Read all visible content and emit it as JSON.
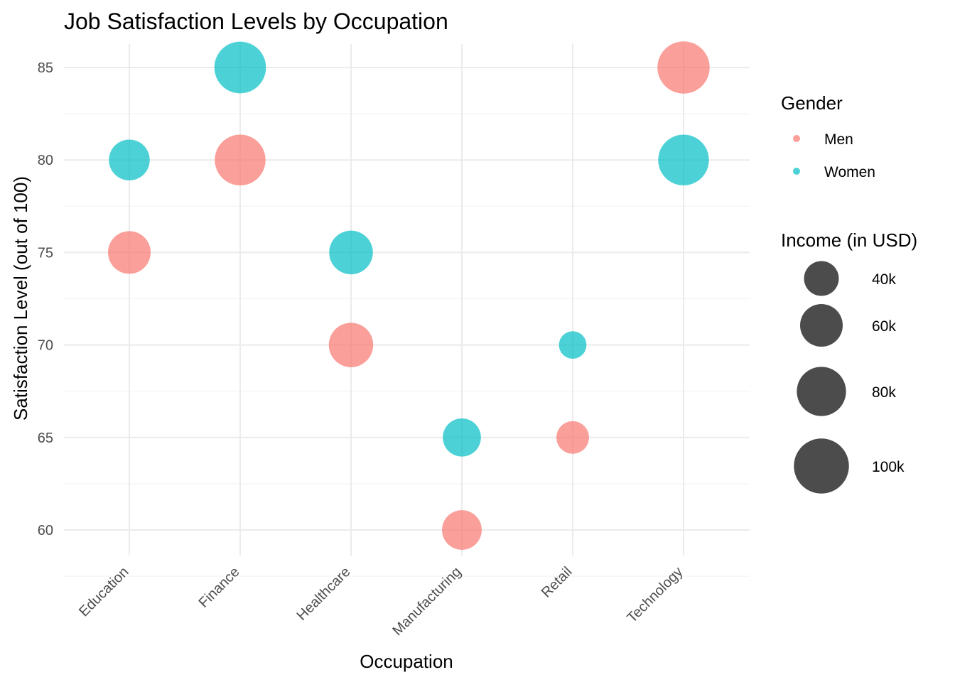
{
  "chart_data": {
    "type": "scatter",
    "title": "Job Satisfaction Levels by Occupation",
    "xlabel": "Occupation",
    "ylabel": "Satisfaction Level (out of 100)",
    "categories": [
      "Education",
      "Finance",
      "Healthcare",
      "Manufacturing",
      "Retail",
      "Technology"
    ],
    "y_ticks": [
      60,
      65,
      70,
      75,
      80,
      85
    ],
    "ylim": [
      58.6,
      86.2
    ],
    "grid": true,
    "legend_position": "right",
    "color_legend": {
      "title": "Gender",
      "entries": [
        {
          "label": "Men",
          "color": "#F8766D"
        },
        {
          "label": "Women",
          "color": "#00BFC4"
        }
      ]
    },
    "size_legend": {
      "title": "Income (in USD)",
      "entries": [
        {
          "label": "40k",
          "value": 40000
        },
        {
          "label": "60k",
          "value": 60000
        },
        {
          "label": "80k",
          "value": 80000
        },
        {
          "label": "100k",
          "value": 100000
        }
      ]
    },
    "series": [
      {
        "name": "Men",
        "color": "#F8766D",
        "points": [
          {
            "x": "Education",
            "y": 75,
            "income": 60000
          },
          {
            "x": "Finance",
            "y": 80,
            "income": 85000
          },
          {
            "x": "Healthcare",
            "y": 70,
            "income": 65000
          },
          {
            "x": "Manufacturing",
            "y": 60,
            "income": 52000
          },
          {
            "x": "Retail",
            "y": 65,
            "income": 35000
          },
          {
            "x": "Technology",
            "y": 85,
            "income": 90000
          }
        ]
      },
      {
        "name": "Women",
        "color": "#00BFC4",
        "points": [
          {
            "x": "Education",
            "y": 80,
            "income": 55000
          },
          {
            "x": "Finance",
            "y": 85,
            "income": 88000
          },
          {
            "x": "Healthcare",
            "y": 75,
            "income": 63000
          },
          {
            "x": "Manufacturing",
            "y": 65,
            "income": 48000
          },
          {
            "x": "Retail",
            "y": 70,
            "income": 25000
          },
          {
            "x": "Technology",
            "y": 80,
            "income": 85000
          }
        ]
      }
    ]
  }
}
